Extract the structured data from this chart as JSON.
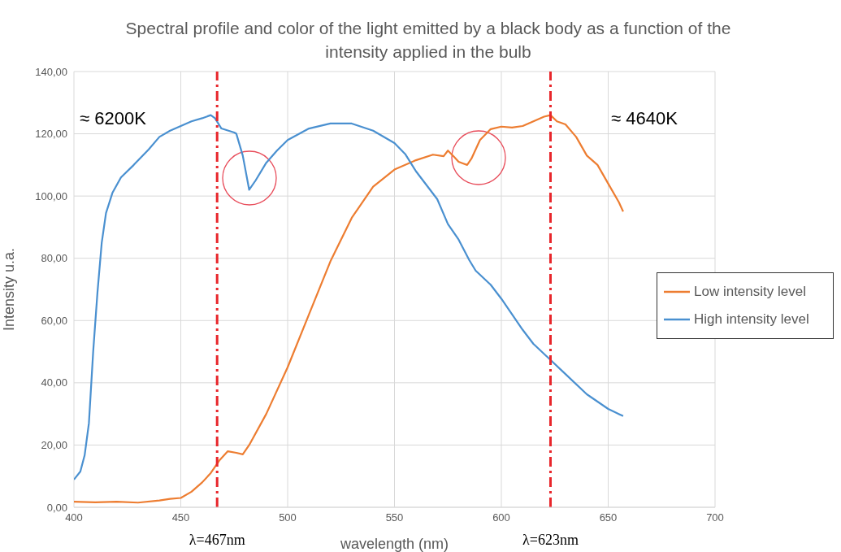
{
  "chart_data": {
    "type": "line",
    "title": "Spectral profile and color of the light emitted by a black body as a function of the intensity applied in the bulb",
    "xlabel": "wavelength (nm)",
    "ylabel": "Intensity u.a.",
    "xlim": [
      400,
      700
    ],
    "xticks": [
      400,
      450,
      500,
      550,
      600,
      650,
      700
    ],
    "ylim": [
      0,
      140
    ],
    "yticks": [
      {
        "value": 0,
        "label": "0,00"
      },
      {
        "value": 20,
        "label": "20,00"
      },
      {
        "value": 40,
        "label": "40,00"
      },
      {
        "value": 60,
        "label": "60,00"
      },
      {
        "value": 80,
        "label": "80,00"
      },
      {
        "value": 100,
        "label": "100,00"
      },
      {
        "value": 120,
        "label": "120,00"
      },
      {
        "value": 140,
        "label": "140,00"
      }
    ],
    "grid": true,
    "legend": "right",
    "marker": "none",
    "line_style": "solid",
    "series": [
      {
        "name": "Low intensity level",
        "color": "#ed7d31",
        "x": [
          400,
          410,
          420,
          430,
          440,
          445,
          450,
          455,
          460,
          464,
          468,
          472,
          476,
          479,
          482,
          490,
          500,
          510,
          520,
          530,
          540,
          550,
          560,
          568,
          573,
          575,
          578,
          580,
          582,
          584,
          586,
          590,
          595,
          600,
          605,
          610,
          615,
          620,
          623,
          626,
          630,
          635,
          640,
          645,
          650,
          655,
          657
        ],
        "values": [
          1.8,
          1.6,
          1.8,
          1.5,
          2.2,
          2.7,
          3,
          5,
          8,
          11,
          15,
          18,
          17.5,
          17,
          20,
          30,
          45,
          62,
          79,
          93,
          103,
          108.5,
          111.5,
          113.3,
          112.8,
          114.6,
          112.5,
          111,
          110.5,
          110,
          112,
          118,
          121.5,
          122.3,
          122,
          122.5,
          124,
          125.5,
          126,
          124,
          123,
          119,
          113,
          110,
          104,
          98,
          95
        ]
      },
      {
        "name": "High intensity level",
        "color": "#4a90d0",
        "x": [
          400,
          403,
          405,
          407,
          409,
          411,
          413,
          415,
          418,
          422,
          428,
          435,
          440,
          445,
          450,
          455,
          460,
          464,
          466,
          469,
          475,
          476,
          479,
          482,
          485,
          490,
          495,
          500,
          510,
          520,
          530,
          540,
          550,
          555,
          560,
          570,
          575,
          580,
          585,
          588,
          595,
          600,
          610,
          615,
          622,
          630,
          640,
          650,
          657
        ],
        "values": [
          8.9,
          11.5,
          16.7,
          27,
          50,
          69,
          85,
          94.5,
          101,
          106,
          110,
          115,
          119,
          121,
          122.5,
          124,
          125,
          126,
          125,
          121.7,
          120.4,
          120,
          113,
          102,
          105,
          110.7,
          114.6,
          118,
          121.7,
          123.3,
          123.3,
          121,
          117,
          113.5,
          108,
          99,
          91,
          86,
          79.4,
          76,
          71.5,
          67,
          57,
          52.5,
          48,
          42.8,
          36.3,
          31.6,
          29.3
        ]
      }
    ],
    "ref_lines": [
      {
        "axis": "x",
        "value": 467,
        "label": "λ=467nm",
        "color": "#e8262b",
        "line_style": "dashed"
      },
      {
        "axis": "x",
        "value": 623,
        "label": "λ=623nm",
        "color": "#e8262b",
        "line_style": "dashed"
      }
    ],
    "annotations": [
      "≈ 6200K",
      "≈ 4640K"
    ]
  }
}
